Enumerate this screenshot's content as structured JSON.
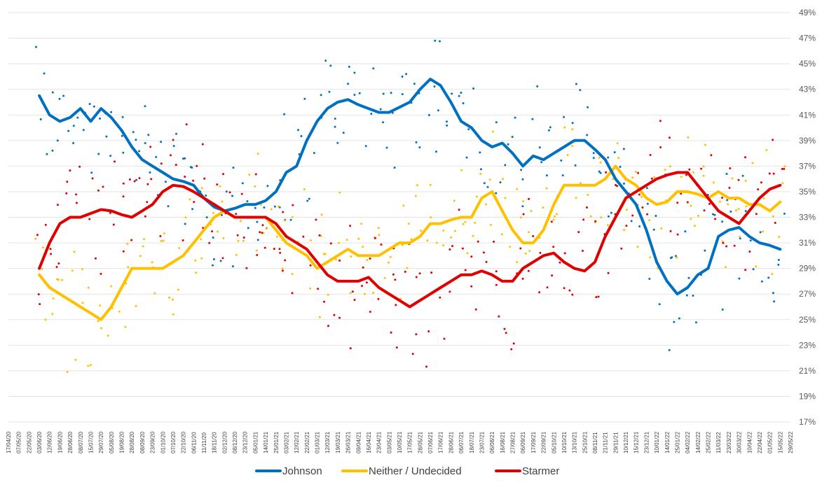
{
  "chart_data": {
    "type": "line",
    "title": "",
    "xlabel": "",
    "ylabel": "",
    "ylim": [
      17,
      50
    ],
    "y_ticks": [
      "17%",
      "19%",
      "21%",
      "23%",
      "25%",
      "27%",
      "29%",
      "31%",
      "33%",
      "35%",
      "37%",
      "39%",
      "41%",
      "43%",
      "45%",
      "47%",
      "49%"
    ],
    "x_ticks": [
      "17/04/20",
      "07/05/20",
      "22/05/20",
      "03/06/20",
      "12/06/20",
      "19/06/20",
      "28/06/20",
      "08/07/20",
      "15/07/20",
      "29/07/20",
      "05/08/20",
      "19/08/20",
      "28/08/20",
      "08/09/20",
      "23/09/20",
      "01/10/20",
      "07/10/20",
      "22/10/20",
      "06/11/20",
      "11/11/20",
      "18/11/20",
      "02/12/20",
      "08/12/20",
      "23/12/20",
      "05/01/21",
      "14/01/21",
      "25/01/21",
      "03/02/21",
      "12/02/21",
      "22/02/21",
      "01/03/21",
      "12/03/21",
      "19/03/21",
      "26/03/21",
      "09/04/21",
      "16/04/21",
      "23/04/21",
      "03/05/21",
      "10/05/21",
      "17/05/21",
      "28/05/21",
      "07/06/21",
      "17/06/21",
      "28/06/21",
      "06/07/21",
      "18/07/21",
      "23/07/21",
      "06/08/21",
      "16/08/21",
      "27/08/21",
      "06/09/21",
      "17/09/21",
      "22/09/21",
      "05/10/21",
      "10/10/21",
      "13/10/21",
      "25/10/21",
      "08/11/21",
      "21/11/21",
      "29/11/21",
      "10/12/21",
      "15/12/21",
      "23/12/21",
      "10/01/22",
      "14/01/22",
      "25/01/22",
      "04/02/22",
      "14/02/22",
      "25/02/22",
      "11/03/22",
      "23/03/22",
      "30/03/22",
      "10/04/22",
      "22/04/22",
      "01/05/22",
      "15/05/22",
      "29/05/22"
    ],
    "legend": {
      "position": "bottom-center",
      "entries": [
        "Johnson",
        "Neither / Undecided",
        "Starmer"
      ]
    },
    "colors": {
      "Johnson": "#0070c0",
      "Neither / Undecided": "#ffc000",
      "Starmer": "#e00000"
    },
    "note": "Thick lines are rolling averages plotted against the 77 date labels (index 0-76); dots are individual poll results.",
    "series": [
      {
        "name": "Johnson",
        "start_index": 3,
        "values": [
          42.5,
          41,
          40.5,
          40.8,
          41.5,
          40.5,
          41.5,
          40.8,
          39.8,
          38.5,
          37.5,
          37,
          36.5,
          36,
          35.8,
          35.5,
          34.5,
          33.8,
          33.5,
          33.7,
          34,
          34,
          34.3,
          35,
          36.5,
          37,
          39,
          40.5,
          41.5,
          42,
          42.2,
          41.8,
          41.5,
          41.2,
          41.2,
          41.6,
          42,
          43,
          43.8,
          43.3,
          42,
          40.5,
          40,
          39,
          38.5,
          38.8,
          38,
          37,
          37.8,
          37.5,
          38,
          38.5,
          39,
          39,
          38.3,
          37.5,
          36,
          35,
          34,
          32,
          29.5,
          28,
          27,
          27.5,
          28.5,
          29,
          31.5,
          32,
          32.2,
          31.5,
          31,
          30.8,
          30.5
        ]
      },
      {
        "name": "Neither / Undecided",
        "start_index": 3,
        "values": [
          28.5,
          27.5,
          27,
          26.5,
          26,
          25.5,
          25,
          26,
          27.5,
          29,
          29,
          29,
          29,
          29.5,
          30,
          31,
          32,
          33,
          33.5,
          33,
          33,
          33,
          33,
          32,
          31,
          30.5,
          30,
          29,
          29.5,
          30,
          30.5,
          30,
          30,
          30,
          30.5,
          31,
          31,
          31.5,
          32.5,
          32.5,
          32.8,
          33,
          33,
          34.5,
          35,
          33.5,
          32,
          31,
          31,
          32,
          34,
          35.5,
          35.5,
          35.5,
          35.5,
          36,
          37,
          36,
          35.5,
          34.5,
          34,
          34.2,
          35,
          35,
          34.8,
          34.5,
          35,
          34.5,
          34.5,
          34,
          34,
          33.5,
          34.2
        ]
      },
      {
        "name": "Starmer",
        "start_index": 3,
        "values": [
          29,
          31,
          32.5,
          33,
          33,
          33.3,
          33.6,
          33.5,
          33.2,
          33,
          33.5,
          34,
          35,
          35.5,
          35.4,
          35,
          34.5,
          34,
          33.5,
          33,
          33,
          33,
          33,
          32.5,
          31.5,
          31,
          30.5,
          29.5,
          28.5,
          28,
          28,
          28,
          28.3,
          27.5,
          27,
          26.5,
          26,
          26.5,
          27,
          27.5,
          28,
          28.5,
          28.5,
          28.8,
          28.5,
          28,
          28,
          29,
          29.5,
          30,
          30.2,
          29.5,
          29,
          28.8,
          29.5,
          31.5,
          33,
          34.5,
          35,
          35.5,
          36,
          36.3,
          36.5,
          36.5,
          35.5,
          34.5,
          33.5,
          33,
          32.5,
          33.5,
          34.5,
          35.2,
          35.5
        ]
      }
    ]
  }
}
